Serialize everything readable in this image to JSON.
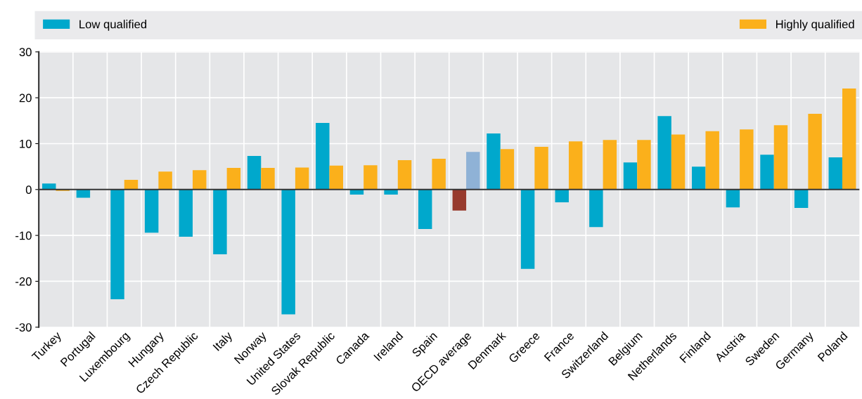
{
  "chart_data": {
    "type": "bar",
    "categories": [
      "Turkey",
      "Portugal",
      "Luxembourg",
      "Hungary",
      "Czech Republic",
      "Italy",
      "Norway",
      "United States",
      "Slovak Republic",
      "Canada",
      "Ireland",
      "Spain",
      "OECD average",
      "Denmark",
      "Greece",
      "France",
      "Switzerland",
      "Belgium",
      "Netherlands",
      "Finland",
      "Austria",
      "Sweden",
      "Germany",
      "Poland"
    ],
    "series": [
      {
        "name": "Low qualified",
        "color": "#00a8cc",
        "colors": [
          "#00a8cc",
          "#00a8cc",
          "#00a8cc",
          "#00a8cc",
          "#00a8cc",
          "#00a8cc",
          "#00a8cc",
          "#00a8cc",
          "#00a8cc",
          "#00a8cc",
          "#00a8cc",
          "#00a8cc",
          "#973a2d",
          "#00a8cc",
          "#00a8cc",
          "#00a8cc",
          "#00a8cc",
          "#00a8cc",
          "#00a8cc",
          "#00a8cc",
          "#00a8cc",
          "#00a8cc",
          "#00a8cc",
          "#00a8cc"
        ],
        "values": [
          1.3,
          -1.8,
          -23.9,
          -9.4,
          -10.3,
          -14.1,
          7.3,
          -27.2,
          14.5,
          -1.1,
          -1.1,
          -8.6,
          -4.6,
          12.2,
          -17.3,
          -2.8,
          -8.2,
          5.9,
          16.0,
          5.0,
          -3.9,
          7.6,
          -4.0,
          7.0
        ]
      },
      {
        "name": "Highly qualified",
        "color": "#fbb01b",
        "colors": [
          "#fbb01b",
          "#fbb01b",
          "#fbb01b",
          "#fbb01b",
          "#fbb01b",
          "#fbb01b",
          "#fbb01b",
          "#fbb01b",
          "#fbb01b",
          "#fbb01b",
          "#fbb01b",
          "#fbb01b",
          "#8fb2d6",
          "#fbb01b",
          "#fbb01b",
          "#fbb01b",
          "#fbb01b",
          "#fbb01b",
          "#fbb01b",
          "#fbb01b",
          "#fbb01b",
          "#fbb01b",
          "#fbb01b",
          "#fbb01b"
        ],
        "values": [
          -0.3,
          null,
          2.1,
          3.9,
          4.2,
          4.7,
          4.7,
          4.8,
          5.2,
          5.3,
          6.4,
          6.7,
          8.2,
          8.8,
          9.3,
          10.5,
          10.8,
          10.8,
          12.0,
          12.7,
          13.1,
          14.0,
          16.5,
          22.0
        ]
      }
    ],
    "ylim": [
      -30,
      30
    ],
    "yticks": [
      -30,
      -20,
      -10,
      0,
      10,
      20,
      30
    ],
    "grid": true,
    "legend": "top"
  }
}
